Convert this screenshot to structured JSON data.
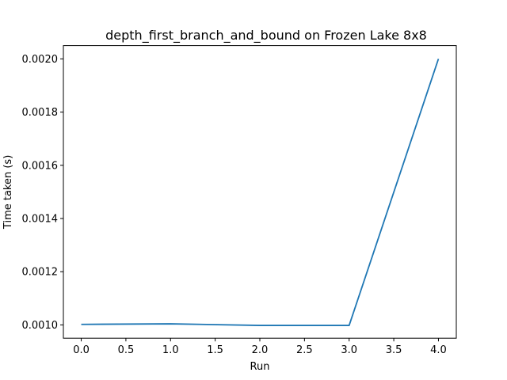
{
  "chart_data": {
    "type": "line",
    "title": "depth_first_branch_and_bound on Frozen Lake 8x8",
    "xlabel": "Run",
    "ylabel": "Time taken (s)",
    "x": [
      0,
      1,
      2,
      3,
      4
    ],
    "series": [
      {
        "name": "",
        "color": "#1f77b4",
        "values": [
          0.001002,
          0.001004,
          0.000998,
          0.000998,
          0.002
        ]
      }
    ],
    "xlim": [
      -0.2,
      4.2
    ],
    "ylim": [
      0.00095,
      0.00205
    ],
    "xticks": [
      0.0,
      0.5,
      1.0,
      1.5,
      2.0,
      2.5,
      3.0,
      3.5,
      4.0
    ],
    "xtick_labels": [
      "0.0",
      "0.5",
      "1.0",
      "1.5",
      "2.0",
      "2.5",
      "3.0",
      "3.5",
      "4.0"
    ],
    "yticks": [
      0.001,
      0.0012,
      0.0014,
      0.0016,
      0.0018,
      0.002
    ],
    "ytick_labels": [
      "0.0010",
      "0.0012",
      "0.0014",
      "0.0016",
      "0.0018",
      "0.0020"
    ],
    "grid": false,
    "legend": false
  }
}
